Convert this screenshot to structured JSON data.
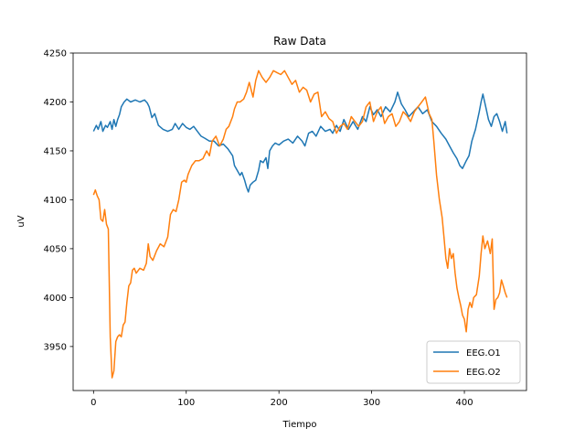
{
  "chart_data": {
    "type": "line",
    "title": "Raw Data",
    "xlabel": "Tiempo",
    "ylabel": "uV",
    "xlim": [
      -22,
      467
    ],
    "ylim": [
      3905,
      4250
    ],
    "xticks": [
      0,
      100,
      200,
      300,
      400
    ],
    "yticks": [
      3950,
      4000,
      4050,
      4100,
      4150,
      4200,
      4250
    ],
    "grid": false,
    "legend_position": "lower right",
    "series": [
      {
        "name": "EEG.O1",
        "color": "#1f77b4",
        "points": [
          [
            0,
            4170
          ],
          [
            3,
            4176
          ],
          [
            5,
            4172
          ],
          [
            8,
            4180
          ],
          [
            10,
            4170
          ],
          [
            13,
            4176
          ],
          [
            15,
            4174
          ],
          [
            18,
            4180
          ],
          [
            20,
            4172
          ],
          [
            22,
            4182
          ],
          [
            24,
            4175
          ],
          [
            26,
            4182
          ],
          [
            28,
            4187
          ],
          [
            30,
            4195
          ],
          [
            33,
            4200
          ],
          [
            36,
            4203
          ],
          [
            40,
            4200
          ],
          [
            45,
            4202
          ],
          [
            50,
            4200
          ],
          [
            55,
            4202
          ],
          [
            58,
            4199
          ],
          [
            60,
            4195
          ],
          [
            63,
            4184
          ],
          [
            66,
            4188
          ],
          [
            70,
            4176
          ],
          [
            75,
            4172
          ],
          [
            80,
            4170
          ],
          [
            85,
            4172
          ],
          [
            88,
            4178
          ],
          [
            92,
            4172
          ],
          [
            96,
            4178
          ],
          [
            100,
            4174
          ],
          [
            104,
            4172
          ],
          [
            108,
            4175
          ],
          [
            112,
            4170
          ],
          [
            116,
            4165
          ],
          [
            120,
            4163
          ],
          [
            125,
            4160
          ],
          [
            130,
            4160
          ],
          [
            135,
            4155
          ],
          [
            140,
            4157
          ],
          [
            145,
            4152
          ],
          [
            150,
            4145
          ],
          [
            152,
            4135
          ],
          [
            155,
            4130
          ],
          [
            158,
            4125
          ],
          [
            160,
            4128
          ],
          [
            163,
            4120
          ],
          [
            165,
            4113
          ],
          [
            167,
            4108
          ],
          [
            169,
            4115
          ],
          [
            172,
            4118
          ],
          [
            175,
            4120
          ],
          [
            178,
            4130
          ],
          [
            180,
            4140
          ],
          [
            183,
            4138
          ],
          [
            186,
            4143
          ],
          [
            188,
            4132
          ],
          [
            190,
            4150
          ],
          [
            193,
            4155
          ],
          [
            196,
            4158
          ],
          [
            200,
            4156
          ],
          [
            205,
            4160
          ],
          [
            210,
            4162
          ],
          [
            215,
            4158
          ],
          [
            220,
            4165
          ],
          [
            225,
            4160
          ],
          [
            228,
            4155
          ],
          [
            232,
            4168
          ],
          [
            236,
            4170
          ],
          [
            240,
            4165
          ],
          [
            245,
            4175
          ],
          [
            250,
            4170
          ],
          [
            255,
            4172
          ],
          [
            258,
            4168
          ],
          [
            262,
            4176
          ],
          [
            266,
            4170
          ],
          [
            270,
            4182
          ],
          [
            275,
            4172
          ],
          [
            280,
            4180
          ],
          [
            285,
            4172
          ],
          [
            290,
            4185
          ],
          [
            294,
            4180
          ],
          [
            298,
            4195
          ],
          [
            302,
            4187
          ],
          [
            306,
            4192
          ],
          [
            310,
            4185
          ],
          [
            315,
            4195
          ],
          [
            320,
            4190
          ],
          [
            325,
            4200
          ],
          [
            328,
            4210
          ],
          [
            332,
            4198
          ],
          [
            336,
            4192
          ],
          [
            340,
            4185
          ],
          [
            345,
            4190
          ],
          [
            350,
            4195
          ],
          [
            355,
            4188
          ],
          [
            360,
            4192
          ],
          [
            365,
            4180
          ],
          [
            370,
            4175
          ],
          [
            375,
            4168
          ],
          [
            380,
            4162
          ],
          [
            384,
            4155
          ],
          [
            388,
            4148
          ],
          [
            392,
            4142
          ],
          [
            395,
            4135
          ],
          [
            398,
            4132
          ],
          [
            402,
            4140
          ],
          [
            405,
            4145
          ],
          [
            408,
            4160
          ],
          [
            412,
            4172
          ],
          [
            416,
            4190
          ],
          [
            418,
            4200
          ],
          [
            420,
            4208
          ],
          [
            423,
            4195
          ],
          [
            426,
            4182
          ],
          [
            429,
            4175
          ],
          [
            432,
            4185
          ],
          [
            435,
            4188
          ],
          [
            438,
            4180
          ],
          [
            441,
            4170
          ],
          [
            444,
            4180
          ],
          [
            446,
            4168
          ]
        ]
      },
      {
        "name": "EEG.O2",
        "color": "#ff7f0e",
        "points": [
          [
            0,
            4105
          ],
          [
            2,
            4110
          ],
          [
            4,
            4104
          ],
          [
            6,
            4100
          ],
          [
            8,
            4080
          ],
          [
            10,
            4078
          ],
          [
            12,
            4090
          ],
          [
            14,
            4075
          ],
          [
            16,
            4070
          ],
          [
            18,
            3960
          ],
          [
            20,
            3918
          ],
          [
            22,
            3925
          ],
          [
            24,
            3955
          ],
          [
            26,
            3960
          ],
          [
            28,
            3962
          ],
          [
            30,
            3960
          ],
          [
            32,
            3972
          ],
          [
            34,
            3975
          ],
          [
            36,
            3995
          ],
          [
            38,
            4012
          ],
          [
            40,
            4015
          ],
          [
            42,
            4028
          ],
          [
            44,
            4030
          ],
          [
            46,
            4025
          ],
          [
            50,
            4030
          ],
          [
            54,
            4028
          ],
          [
            57,
            4035
          ],
          [
            59,
            4055
          ],
          [
            61,
            4042
          ],
          [
            64,
            4038
          ],
          [
            68,
            4048
          ],
          [
            72,
            4055
          ],
          [
            76,
            4052
          ],
          [
            80,
            4062
          ],
          [
            83,
            4085
          ],
          [
            86,
            4090
          ],
          [
            89,
            4088
          ],
          [
            92,
            4100
          ],
          [
            95,
            4118
          ],
          [
            98,
            4120
          ],
          [
            100,
            4118
          ],
          [
            102,
            4126
          ],
          [
            106,
            4135
          ],
          [
            110,
            4140
          ],
          [
            114,
            4140
          ],
          [
            118,
            4142
          ],
          [
            122,
            4150
          ],
          [
            125,
            4145
          ],
          [
            128,
            4160
          ],
          [
            132,
            4165
          ],
          [
            136,
            4155
          ],
          [
            140,
            4162
          ],
          [
            143,
            4172
          ],
          [
            146,
            4175
          ],
          [
            150,
            4185
          ],
          [
            152,
            4193
          ],
          [
            155,
            4200
          ],
          [
            158,
            4200
          ],
          [
            162,
            4203
          ],
          [
            165,
            4210
          ],
          [
            168,
            4220
          ],
          [
            172,
            4205
          ],
          [
            175,
            4222
          ],
          [
            178,
            4232
          ],
          [
            182,
            4225
          ],
          [
            186,
            4220
          ],
          [
            190,
            4225
          ],
          [
            194,
            4232
          ],
          [
            198,
            4230
          ],
          [
            202,
            4228
          ],
          [
            206,
            4232
          ],
          [
            210,
            4225
          ],
          [
            214,
            4218
          ],
          [
            218,
            4222
          ],
          [
            222,
            4210
          ],
          [
            226,
            4215
          ],
          [
            230,
            4212
          ],
          [
            234,
            4200
          ],
          [
            238,
            4208
          ],
          [
            242,
            4210
          ],
          [
            246,
            4185
          ],
          [
            250,
            4190
          ],
          [
            254,
            4183
          ],
          [
            258,
            4180
          ],
          [
            262,
            4168
          ],
          [
            266,
            4175
          ],
          [
            270,
            4178
          ],
          [
            274,
            4172
          ],
          [
            278,
            4185
          ],
          [
            282,
            4180
          ],
          [
            286,
            4175
          ],
          [
            290,
            4180
          ],
          [
            294,
            4195
          ],
          [
            298,
            4200
          ],
          [
            302,
            4180
          ],
          [
            306,
            4190
          ],
          [
            310,
            4195
          ],
          [
            314,
            4178
          ],
          [
            318,
            4185
          ],
          [
            322,
            4188
          ],
          [
            326,
            4175
          ],
          [
            330,
            4180
          ],
          [
            334,
            4190
          ],
          [
            338,
            4186
          ],
          [
            342,
            4180
          ],
          [
            346,
            4190
          ],
          [
            350,
            4195
          ],
          [
            354,
            4200
          ],
          [
            358,
            4205
          ],
          [
            362,
            4188
          ],
          [
            365,
            4182
          ],
          [
            367,
            4160
          ],
          [
            370,
            4125
          ],
          [
            373,
            4100
          ],
          [
            376,
            4082
          ],
          [
            378,
            4062
          ],
          [
            380,
            4040
          ],
          [
            382,
            4030
          ],
          [
            384,
            4050
          ],
          [
            386,
            4040
          ],
          [
            388,
            4045
          ],
          [
            390,
            4025
          ],
          [
            392,
            4010
          ],
          [
            394,
            4000
          ],
          [
            396,
            3992
          ],
          [
            398,
            3982
          ],
          [
            400,
            3978
          ],
          [
            402,
            3965
          ],
          [
            404,
            3988
          ],
          [
            406,
            3995
          ],
          [
            408,
            3990
          ],
          [
            410,
            4000
          ],
          [
            413,
            4003
          ],
          [
            416,
            4022
          ],
          [
            418,
            4045
          ],
          [
            420,
            4063
          ],
          [
            422,
            4050
          ],
          [
            425,
            4058
          ],
          [
            428,
            4045
          ],
          [
            430,
            4060
          ],
          [
            432,
            3988
          ],
          [
            434,
            3998
          ],
          [
            436,
            4000
          ],
          [
            438,
            4005
          ],
          [
            440,
            4018
          ],
          [
            442,
            4012
          ],
          [
            444,
            4005
          ],
          [
            446,
            4000
          ]
        ]
      }
    ]
  }
}
